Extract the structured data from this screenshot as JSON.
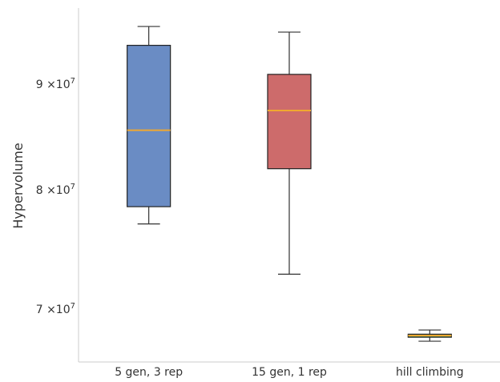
{
  "chart_data": {
    "type": "box",
    "ylabel": "Hypervolume",
    "yscale": "log",
    "ylim": [
      66000000,
      98000000
    ],
    "yticks": [
      {
        "value": 70000000,
        "label_base": "7",
        "label_exp": "7"
      },
      {
        "value": 80000000,
        "label_base": "8",
        "label_exp": "7"
      },
      {
        "value": 90000000,
        "label_base": "9",
        "label_exp": "7"
      }
    ],
    "tick_multiplier_text": "×10",
    "categories": [
      "5 gen, 3 rep",
      "15 gen, 1 rep",
      "hill climbing"
    ],
    "boxes": [
      {
        "category": "5 gen, 3 rep",
        "whisker_low": 77000000,
        "q1": 78500000,
        "median": 85500000,
        "q3": 94000000,
        "whisker_high": 96000000,
        "fill": "#6a8cc4",
        "median_color": "#f0a830"
      },
      {
        "category": "15 gen, 1 rep",
        "whisker_low": 72800000,
        "q1": 81900000,
        "median": 87400000,
        "q3": 91000000,
        "whisker_high": 95400000,
        "fill": "#cd6b6b",
        "median_color": "#f0a830"
      },
      {
        "category": "hill climbing",
        "whisker_low": 67550000,
        "q1": 67850000,
        "median": 67980000,
        "q3": 68080000,
        "whisker_high": 68400000,
        "fill": "#5ca35c",
        "median_color": "#f0a830"
      }
    ],
    "grid": false
  }
}
